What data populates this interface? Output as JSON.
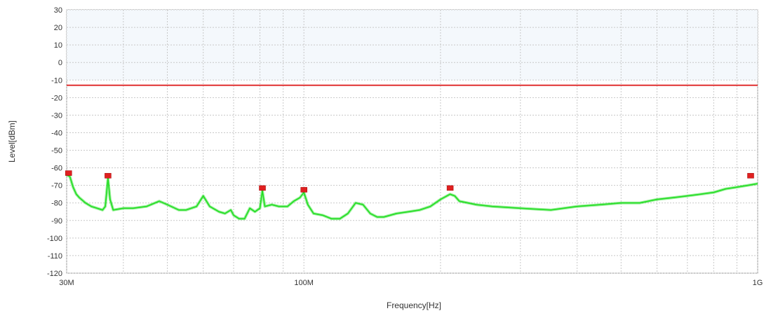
{
  "chart_data": {
    "type": "line",
    "title": "",
    "xlabel": "Frequency[Hz]",
    "ylabel": "Level[dBm]",
    "x_scale": "log",
    "xlim": [
      30000000,
      1000000000
    ],
    "ylim": [
      -120,
      30
    ],
    "grid": true,
    "x_tick_labels": [
      {
        "value": 30000000,
        "label": "30M"
      },
      {
        "value": 100000000,
        "label": "100M"
      },
      {
        "value": 1000000000,
        "label": "1G"
      }
    ],
    "y_ticks": [
      30,
      20,
      10,
      0,
      -10,
      -20,
      -30,
      -40,
      -50,
      -60,
      -70,
      -80,
      -90,
      -100,
      -110,
      -120
    ],
    "limit_line": {
      "y": -13,
      "color": "#e03030"
    },
    "series": [
      {
        "color": "#22dd22",
        "points": [
          [
            30000000,
            -64
          ],
          [
            30500000,
            -65
          ],
          [
            31000000,
            -71
          ],
          [
            31500000,
            -75
          ],
          [
            32000000,
            -77
          ],
          [
            33000000,
            -80
          ],
          [
            34000000,
            -82
          ],
          [
            35000000,
            -83
          ],
          [
            36000000,
            -84
          ],
          [
            36500000,
            -82
          ],
          [
            37000000,
            -66
          ],
          [
            37400000,
            -78
          ],
          [
            38000000,
            -84
          ],
          [
            40000000,
            -83
          ],
          [
            42000000,
            -83
          ],
          [
            45000000,
            -82
          ],
          [
            48000000,
            -79
          ],
          [
            50000000,
            -81
          ],
          [
            53000000,
            -84
          ],
          [
            55000000,
            -84
          ],
          [
            58000000,
            -82
          ],
          [
            60000000,
            -76
          ],
          [
            62000000,
            -82
          ],
          [
            65000000,
            -85
          ],
          [
            67000000,
            -86
          ],
          [
            69000000,
            -84
          ],
          [
            70000000,
            -87
          ],
          [
            72000000,
            -89
          ],
          [
            74000000,
            -89
          ],
          [
            76000000,
            -83
          ],
          [
            78000000,
            -85
          ],
          [
            80000000,
            -83
          ],
          [
            81000000,
            -73
          ],
          [
            82000000,
            -82
          ],
          [
            85000000,
            -81
          ],
          [
            88000000,
            -82
          ],
          [
            92000000,
            -82
          ],
          [
            95000000,
            -79
          ],
          [
            98000000,
            -77
          ],
          [
            100000000,
            -74
          ],
          [
            102000000,
            -81
          ],
          [
            105000000,
            -86
          ],
          [
            110000000,
            -87
          ],
          [
            115000000,
            -89
          ],
          [
            120000000,
            -89
          ],
          [
            125000000,
            -86
          ],
          [
            130000000,
            -80
          ],
          [
            135000000,
            -81
          ],
          [
            140000000,
            -86
          ],
          [
            145000000,
            -88
          ],
          [
            150000000,
            -88
          ],
          [
            160000000,
            -86
          ],
          [
            170000000,
            -85
          ],
          [
            180000000,
            -84
          ],
          [
            190000000,
            -82
          ],
          [
            200000000,
            -78
          ],
          [
            210000000,
            -75
          ],
          [
            215000000,
            -76
          ],
          [
            220000000,
            -79
          ],
          [
            240000000,
            -81
          ],
          [
            260000000,
            -82
          ],
          [
            300000000,
            -83
          ],
          [
            350000000,
            -84
          ],
          [
            400000000,
            -82
          ],
          [
            450000000,
            -81
          ],
          [
            500000000,
            -80
          ],
          [
            550000000,
            -80
          ],
          [
            600000000,
            -78
          ],
          [
            650000000,
            -77
          ],
          [
            700000000,
            -76
          ],
          [
            750000000,
            -75
          ],
          [
            800000000,
            -74
          ],
          [
            850000000,
            -72
          ],
          [
            900000000,
            -71
          ],
          [
            950000000,
            -70
          ],
          [
            1000000000,
            -69
          ]
        ]
      }
    ],
    "markers": [
      {
        "x": 30300000,
        "y": -63,
        "color": "#e02020"
      },
      {
        "x": 37000000,
        "y": -64.5,
        "color": "#e02020"
      },
      {
        "x": 81000000,
        "y": -71.5,
        "color": "#e02020"
      },
      {
        "x": 100000000,
        "y": -72.5,
        "color": "#e02020"
      },
      {
        "x": 210000000,
        "y": -71.5,
        "color": "#e02020"
      },
      {
        "x": 965000000,
        "y": -64.5,
        "color": "#e02020"
      }
    ]
  }
}
